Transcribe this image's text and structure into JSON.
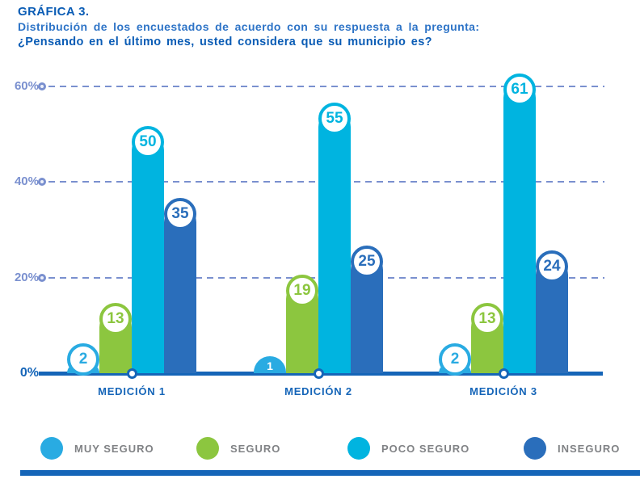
{
  "header": {
    "kicker": "GRÁFICA 3.",
    "subtitle": "Distribución de los encuestados de acuerdo con su respuesta a la pregunta:",
    "question": "¿Pensando en el último mes, usted considera que su municipio es?"
  },
  "axis": {
    "tick_60": "60%",
    "tick_40": "40%",
    "tick_20": "20%",
    "tick_0": "0%"
  },
  "colors": {
    "muy_seguro": "#29abe2",
    "seguro": "#8cc63f",
    "poco_seguro": "#00b4e0",
    "inseguro": "#2a6ebb",
    "axis_blue": "#1565b8",
    "grid_periwinkle": "#7a90cf",
    "title_blue": "#0a5cb5",
    "subtitle_blue": "#2e74c7",
    "legend_gray": "#808285"
  },
  "chart_data": {
    "type": "bar",
    "title": "GRÁFICA 3. Distribución de los encuestados de acuerdo con su respuesta a la pregunta: ¿Pensando en el último mes, usted considera que su municipio es?",
    "categories": [
      "MEDICIÓN 1",
      "MEDICIÓN 2",
      "MEDICIÓN 3"
    ],
    "series": [
      {
        "name": "MUY SEGURO",
        "color": "#29abe2",
        "values": [
          2,
          1,
          2
        ]
      },
      {
        "name": "SEGURO",
        "color": "#8cc63f",
        "values": [
          13,
          19,
          13
        ]
      },
      {
        "name": "POCO SEGURO",
        "color": "#00b4e0",
        "values": [
          50,
          55,
          61
        ]
      },
      {
        "name": "INSEGURO",
        "color": "#2a6ebb",
        "values": [
          35,
          25,
          24
        ]
      }
    ],
    "unit": "percent",
    "xlabel": "",
    "ylabel": "",
    "y_ticks": [
      "0%",
      "20%",
      "40%",
      "60%"
    ],
    "ylim": [
      0,
      65
    ],
    "grid": "horizontal-dashed",
    "legend_position": "bottom"
  }
}
